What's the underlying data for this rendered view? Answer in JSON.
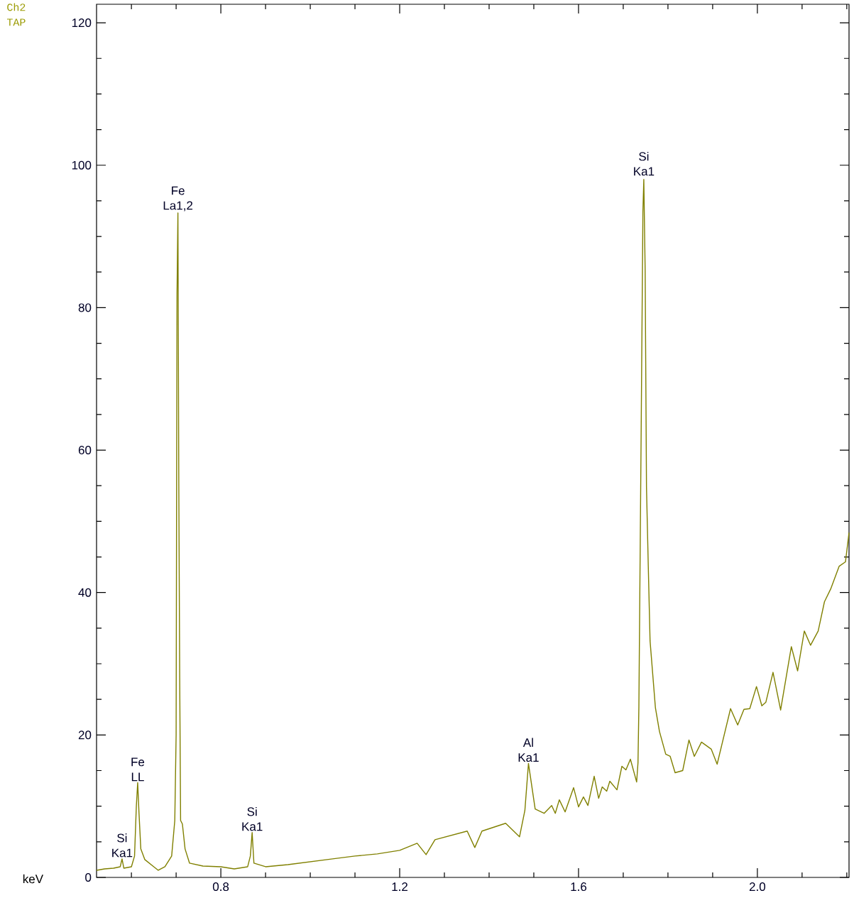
{
  "chart_data": {
    "type": "line",
    "color": "#808000",
    "xlabel": "keV",
    "annotations": [
      "Ch2",
      "TAP",
      {
        "text": "Si Ka1",
        "x": 0.579,
        "y": 2.6
      },
      {
        "text": "Fe LL",
        "x": 0.614,
        "y": 13.3
      },
      {
        "text": "Fe La1,2",
        "x": 0.704,
        "y": 93.3
      },
      {
        "text": "Si Ka1",
        "x": 0.87,
        "y": 6.3
      },
      {
        "text": "Al Ka1",
        "x": 1.488,
        "y": 16.0
      },
      {
        "text": "Si Ka1",
        "x": 1.746,
        "y": 98.3
      }
    ],
    "xlim": [
      0.522,
      2.205
    ],
    "ylim": [
      0,
      122.6
    ],
    "xticks": [
      {
        "value": 0.6,
        "label": null
      },
      {
        "value": 0.7,
        "label": null
      },
      0.8,
      {
        "value": 0.9,
        "label": null
      },
      {
        "value": 1.0,
        "label": null
      },
      {
        "value": 1.1,
        "label": null
      },
      1.2,
      {
        "value": 1.3,
        "label": null
      },
      {
        "value": 1.4,
        "label": null
      },
      {
        "value": 1.5,
        "label": null
      },
      1.6,
      {
        "value": 1.7,
        "label": null
      },
      {
        "value": 1.8,
        "label": null
      },
      {
        "value": 1.9,
        "label": null
      },
      {
        "value": 2.0,
        "label": "2.0"
      },
      {
        "value": 2.1,
        "label": null
      },
      {
        "value": 2.2,
        "label": null
      }
    ],
    "yticks": [
      0,
      {
        "value": 5,
        "label": null
      },
      {
        "value": 10,
        "label": null
      },
      {
        "value": 15,
        "label": null
      },
      20,
      {
        "value": 25,
        "label": null
      },
      {
        "value": 30,
        "label": null
      },
      {
        "value": 35,
        "label": null
      },
      40,
      {
        "value": 45,
        "label": null
      },
      {
        "value": 50,
        "label": null
      },
      {
        "value": 55,
        "label": null
      },
      60,
      {
        "value": 65,
        "label": null
      },
      {
        "value": 70,
        "label": null
      },
      {
        "value": 75,
        "label": null
      },
      80,
      {
        "value": 85,
        "label": null
      },
      {
        "value": 90,
        "label": null
      },
      {
        "value": 95,
        "label": null
      },
      100,
      {
        "value": 105,
        "label": null
      },
      {
        "value": 110,
        "label": null
      },
      {
        "value": 115,
        "label": null
      },
      120
    ],
    "x": [
      0.522,
      0.54,
      0.56,
      0.575,
      0.579,
      0.583,
      0.6,
      0.607,
      0.611,
      0.614,
      0.617,
      0.621,
      0.63,
      0.65,
      0.66,
      0.675,
      0.69,
      0.697,
      0.7,
      0.702,
      0.704,
      0.706,
      0.708,
      0.71,
      0.714,
      0.72,
      0.73,
      0.76,
      0.8,
      0.83,
      0.86,
      0.866,
      0.87,
      0.874,
      0.9,
      0.95,
      1.0,
      1.05,
      1.1,
      1.15,
      1.2,
      1.239,
      1.259,
      1.279,
      1.351,
      1.368,
      1.384,
      1.437,
      1.468,
      1.48,
      1.488,
      1.503,
      1.523,
      1.54,
      1.548,
      1.557,
      1.57,
      1.589,
      1.6,
      1.611,
      1.621,
      1.635,
      1.645,
      1.653,
      1.663,
      1.67,
      1.686,
      1.697,
      1.706,
      1.716,
      1.73,
      1.733,
      1.735,
      1.74,
      1.744,
      1.746,
      1.749,
      1.752,
      1.756,
      1.76,
      1.772,
      1.781,
      1.795,
      1.805,
      1.816,
      1.833,
      1.847,
      1.859,
      1.875,
      1.897,
      1.91,
      1.94,
      1.956,
      1.97,
      1.983,
      1.998,
      2.01,
      2.019,
      2.035,
      2.052,
      2.076,
      2.09,
      2.105,
      2.119,
      2.136,
      2.15,
      2.164,
      2.183,
      2.197,
      2.205
    ],
    "values": [
      1.0,
      1.2,
      1.3,
      1.5,
      2.6,
      1.3,
      1.5,
      3.0,
      10.0,
      13.3,
      9.0,
      4.0,
      2.5,
      1.5,
      1.0,
      1.5,
      3.0,
      8.0,
      20,
      82,
      93.3,
      55,
      28,
      8,
      7.5,
      4.0,
      2.0,
      1.6,
      1.5,
      1.2,
      1.5,
      3.0,
      6.3,
      2.0,
      1.5,
      1.8,
      2.2,
      2.6,
      3.0,
      3.3,
      3.8,
      4.8,
      3.2,
      5.3,
      6.5,
      4.2,
      6.5,
      7.6,
      5.7,
      9.4,
      16.0,
      9.6,
      9.0,
      10.1,
      9.0,
      10.9,
      9.2,
      12.6,
      9.9,
      11.3,
      10.1,
      14.2,
      11.1,
      12.7,
      12.1,
      13.5,
      12.3,
      15.6,
      15.1,
      16.6,
      13.4,
      16.1,
      24,
      62,
      93.5,
      98.0,
      85.3,
      54.8,
      43.7,
      33.2,
      23.8,
      20.5,
      17.3,
      17.0,
      14.7,
      15.0,
      19.3,
      17.0,
      19.0,
      18.0,
      15.9,
      23.7,
      21.4,
      23.6,
      23.7,
      26.8,
      24.1,
      24.6,
      28.8,
      23.5,
      32.4,
      29.0,
      34.6,
      32.6,
      34.6,
      38.7,
      40.5,
      43.7,
      44.3,
      48.4
    ]
  }
}
